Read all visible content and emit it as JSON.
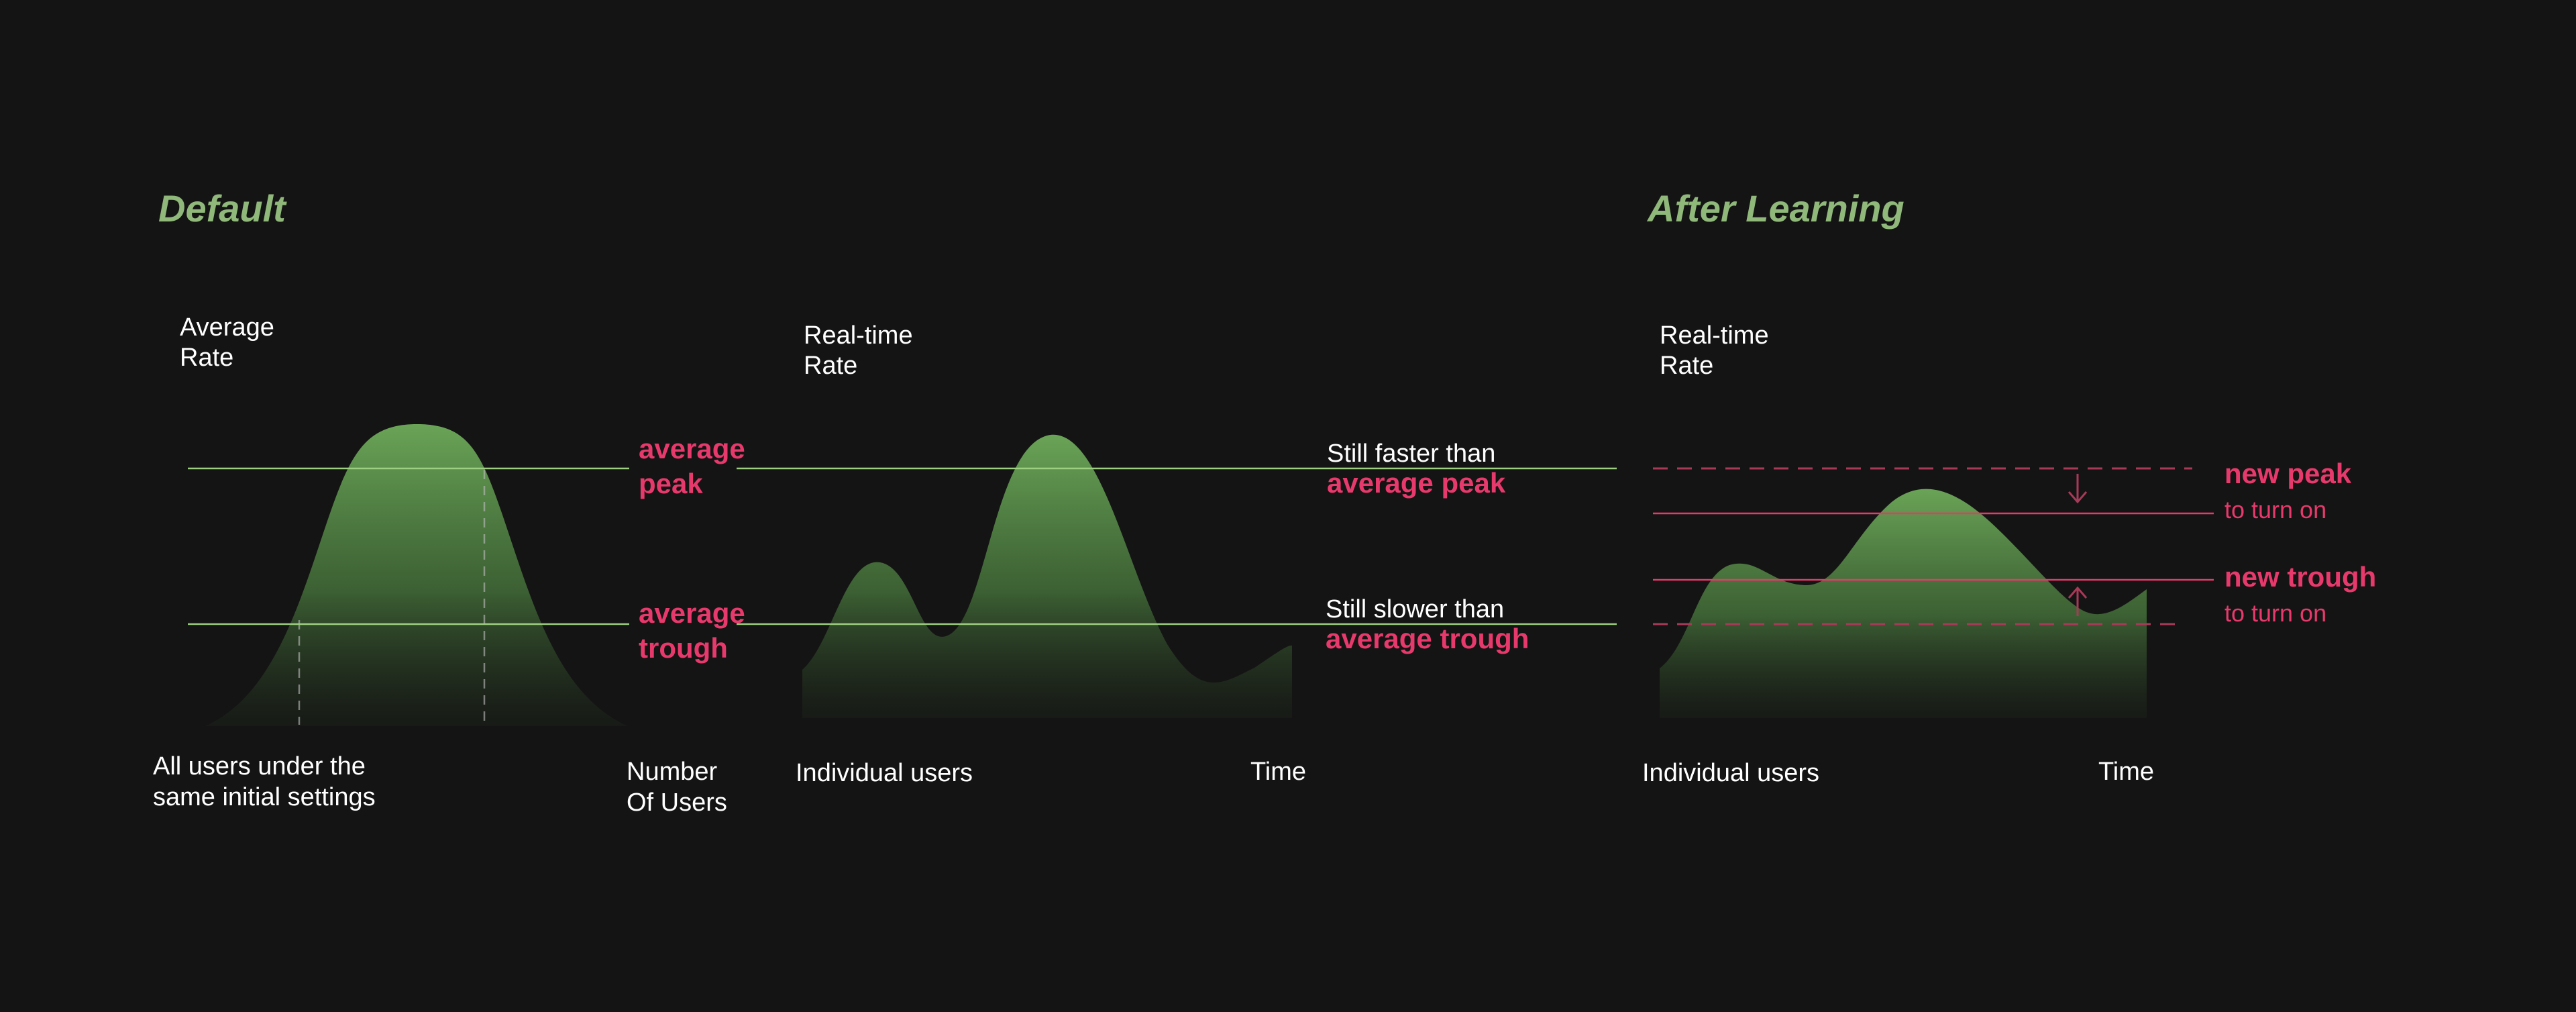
{
  "colors": {
    "background": "#141414",
    "title_green": "#8fb87a",
    "curve_green": "#6aa457",
    "guide_green": "#9ccf7f",
    "accent_pink": "#e8396c",
    "axis": "#c9c9c9",
    "text": "#ffffff"
  },
  "default_section": {
    "title": "Default",
    "chart1": {
      "y_label": [
        "Average",
        "Rate"
      ],
      "x_label_left": [
        "All users under the",
        "same initial settings"
      ],
      "x_label_right": [
        "Number",
        "Of Users"
      ],
      "peak_label": [
        "average",
        "peak"
      ],
      "trough_label": [
        "average",
        "trough"
      ]
    },
    "chart2": {
      "y_label": [
        "Real-time",
        "Rate"
      ],
      "x_label_left": "Individual  users",
      "x_label_right": "Time",
      "peak_note": {
        "line1": "Still faster than",
        "line2": "average peak"
      },
      "trough_note": {
        "line1": "Still slower than",
        "line2": "average trough"
      }
    }
  },
  "after_section": {
    "title": "After Learning",
    "chart3": {
      "y_label": [
        "Real-time",
        "Rate"
      ],
      "x_label_left": "Individual  users",
      "x_label_right": "Time",
      "new_peak": [
        "new peak",
        "to turn on"
      ],
      "new_trough": [
        "new trough",
        "to turn on"
      ]
    }
  }
}
